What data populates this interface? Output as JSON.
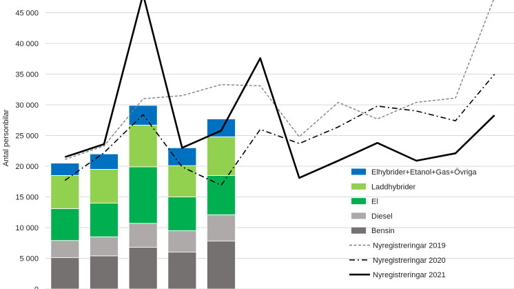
{
  "chart_data": {
    "type": "bar",
    "ylabel": "Antal personbilar",
    "ylim": [
      0,
      45000
    ],
    "yticks": [
      0,
      5000,
      10000,
      15000,
      20000,
      25000,
      30000,
      35000,
      40000,
      45000
    ],
    "ytick_labels": [
      "0",
      "5 000",
      "10 000",
      "15 000",
      "20 000",
      "25 000",
      "30 000",
      "35 000",
      "40 000",
      "45 000"
    ],
    "x_count": 12,
    "stacked_series": [
      {
        "name": "Bensin",
        "color": "#767171",
        "values": [
          5100,
          5400,
          6800,
          6000,
          7800
        ]
      },
      {
        "name": "Diesel",
        "color": "#aeaaaa",
        "values": [
          2800,
          3100,
          3900,
          3500,
          4300
        ]
      },
      {
        "name": "El",
        "color": "#00b050",
        "values": [
          5200,
          5500,
          9200,
          5500,
          6400
        ]
      },
      {
        "name": "Laddhybrider",
        "color": "#92d050",
        "values": [
          5400,
          5500,
          6800,
          5100,
          6300
        ]
      },
      {
        "name": "Elhybrider+Etanol+Gas+Övriga",
        "color": "#0070c0",
        "values": [
          2000,
          2500,
          3200,
          2900,
          2900
        ]
      }
    ],
    "line_series": [
      {
        "name": "Nyregistreringar 2019",
        "style": "dashed",
        "values": [
          21100,
          23300,
          31000,
          31500,
          33300,
          33100,
          24800,
          30400,
          27700,
          30400,
          31100,
          47500
        ]
      },
      {
        "name": "Nyregistreringar 2020",
        "style": "dashdot",
        "values": [
          17700,
          22200,
          28400,
          19900,
          16900,
          26000,
          23700,
          26400,
          29800,
          29000,
          27400,
          35000
        ]
      },
      {
        "name": "Nyregistreringar 2021",
        "style": "solid",
        "values": [
          21500,
          23600,
          48000,
          23000,
          25800,
          37600,
          18100,
          20900,
          23800,
          20900,
          22100,
          28300
        ]
      }
    ],
    "legend": {
      "position": "right",
      "entries": [
        {
          "label": "Elhybrider+Etanol+Gas+Övriga",
          "kind": "box",
          "color": "#0070c0"
        },
        {
          "label": "Laddhybrider",
          "kind": "box",
          "color": "#92d050"
        },
        {
          "label": "El",
          "kind": "box",
          "color": "#00b050"
        },
        {
          "label": "Diesel",
          "kind": "box",
          "color": "#aeaaaa"
        },
        {
          "label": "Bensin",
          "kind": "box",
          "color": "#767171"
        },
        {
          "label": "Nyregistreringar 2019",
          "kind": "line",
          "style": "dashed",
          "color": "#7f7f7f"
        },
        {
          "label": "Nyregistreringar 2020",
          "kind": "line",
          "style": "dashdot",
          "color": "#000000"
        },
        {
          "label": "Nyregistreringar 2021",
          "kind": "line",
          "style": "solid",
          "color": "#000000"
        }
      ]
    }
  }
}
